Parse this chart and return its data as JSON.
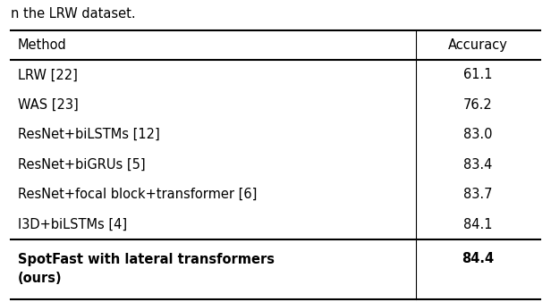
{
  "caption": "n the LRW dataset.",
  "header": [
    "Method",
    "Accuracy"
  ],
  "rows": [
    [
      "LRW [22]",
      "61.1"
    ],
    [
      "WAS [23]",
      "76.2"
    ],
    [
      "ResNet+biLSTMs [12]",
      "83.0"
    ],
    [
      "ResNet+biGRUs [5]",
      "83.4"
    ],
    [
      "ResNet+focal block+transformer [6]",
      "83.7"
    ],
    [
      "I3D+biLSTMs [4]",
      "84.1"
    ],
    [
      "SpotFast with lateral transformers\n(ours)",
      "84.4"
    ]
  ],
  "bold_last_row": true,
  "bg_color": "#ffffff",
  "text_color": "#000000",
  "font_size": 10.5,
  "header_font_size": 10.5,
  "caption_font_size": 10.5,
  "col_split_ratio": 0.765,
  "thick_lw": 1.5,
  "thin_lw": 0.8
}
